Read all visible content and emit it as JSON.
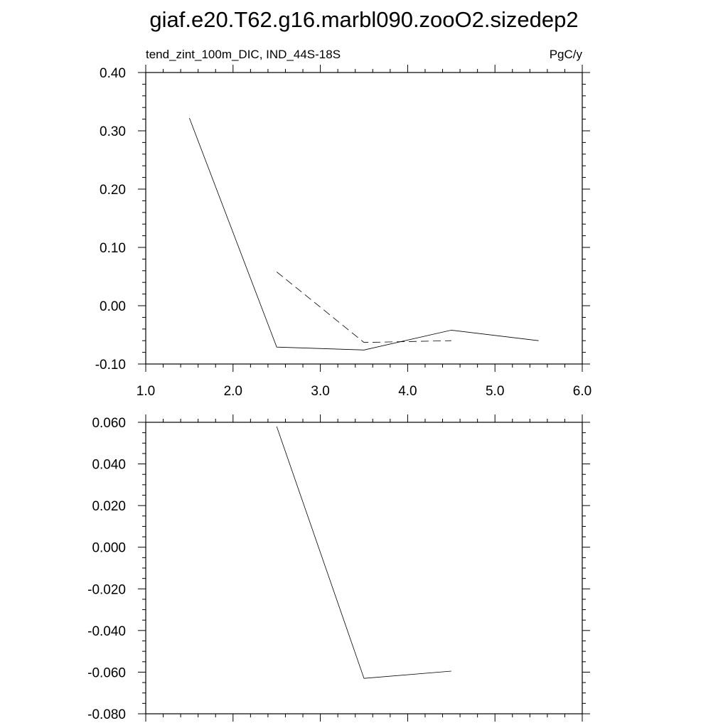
{
  "title": "giaf.e20.T62.g16.marbl090.zooO2.sizedep2",
  "chart_data": [
    {
      "type": "line",
      "left_subtitle": "tend_zint_100m_DIC, IND_44S-18S",
      "right_subtitle": "PgC/y",
      "xlim": [
        1.0,
        6.0
      ],
      "ylim": [
        -0.1,
        0.4
      ],
      "xticks": [
        1.0,
        2.0,
        3.0,
        4.0,
        5.0,
        6.0
      ],
      "xtick_labels": [
        "1.0",
        "2.0",
        "3.0",
        "4.0",
        "5.0",
        "6.0"
      ],
      "yticks": [
        -0.1,
        0.0,
        0.1,
        0.2,
        0.3,
        0.4
      ],
      "ytick_labels": [
        "-0.10",
        "0.00",
        "0.10",
        "0.20",
        "0.30",
        "0.40"
      ],
      "grid": false,
      "series": [
        {
          "style": "solid",
          "color": "#000000",
          "x": [
            1.5,
            2.5,
            3.5,
            4.5,
            5.5
          ],
          "y": [
            0.322,
            -0.071,
            -0.076,
            -0.042,
            -0.06
          ]
        },
        {
          "style": "dashed",
          "color": "#000000",
          "x": [
            2.5,
            3.5,
            4.5
          ],
          "y": [
            0.058,
            -0.063,
            -0.06
          ]
        }
      ]
    },
    {
      "type": "line",
      "xlim": [
        1.0,
        6.0
      ],
      "ylim": [
        -0.08,
        0.06
      ],
      "yticks": [
        -0.08,
        -0.06,
        -0.04,
        -0.02,
        0.0,
        0.02,
        0.04,
        0.06
      ],
      "ytick_labels": [
        "-0.080",
        "-0.060",
        "-0.040",
        "-0.020",
        "0.000",
        "0.020",
        "0.040",
        "0.060"
      ],
      "grid": false,
      "series": [
        {
          "style": "solid",
          "color": "#000000",
          "x": [
            2.5,
            3.5,
            4.5
          ],
          "y": [
            0.058,
            -0.063,
            -0.0595
          ]
        }
      ]
    }
  ]
}
